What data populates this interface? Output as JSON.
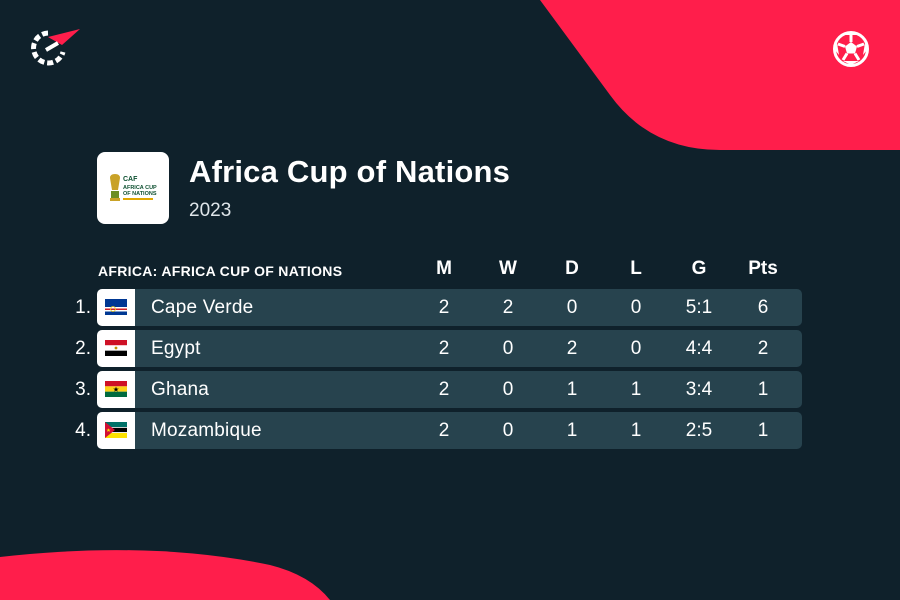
{
  "brand": {
    "logo": "flashscore-logo-icon",
    "accent": "#ff1e4b",
    "background": "#0f212b"
  },
  "header_icons": {
    "ball": "football-icon"
  },
  "competition": {
    "name": "Africa Cup of Nations",
    "season": "2023",
    "badge": "afcon-logo-icon",
    "badge_text": [
      "CAF",
      "AFRICA CUP",
      "OF NATIONS"
    ]
  },
  "table": {
    "league_label": "AFRICA: AFRICA CUP OF NATIONS",
    "columns": [
      "M",
      "W",
      "D",
      "L",
      "G",
      "Pts"
    ],
    "row_color": "#27434e",
    "rows": [
      {
        "rank": "1.",
        "team": "Cape Verde",
        "flag": "cape-verde-flag-icon",
        "m": "2",
        "w": "2",
        "d": "0",
        "l": "0",
        "g": "5:1",
        "pts": "6"
      },
      {
        "rank": "2.",
        "team": "Egypt",
        "flag": "egypt-flag-icon",
        "m": "2",
        "w": "0",
        "d": "2",
        "l": "0",
        "g": "4:4",
        "pts": "2"
      },
      {
        "rank": "3.",
        "team": "Ghana",
        "flag": "ghana-flag-icon",
        "m": "2",
        "w": "0",
        "d": "1",
        "l": "1",
        "g": "3:4",
        "pts": "1"
      },
      {
        "rank": "4.",
        "team": "Mozambique",
        "flag": "mozambique-flag-icon",
        "m": "2",
        "w": "0",
        "d": "1",
        "l": "1",
        "g": "2:5",
        "pts": "1"
      }
    ]
  }
}
